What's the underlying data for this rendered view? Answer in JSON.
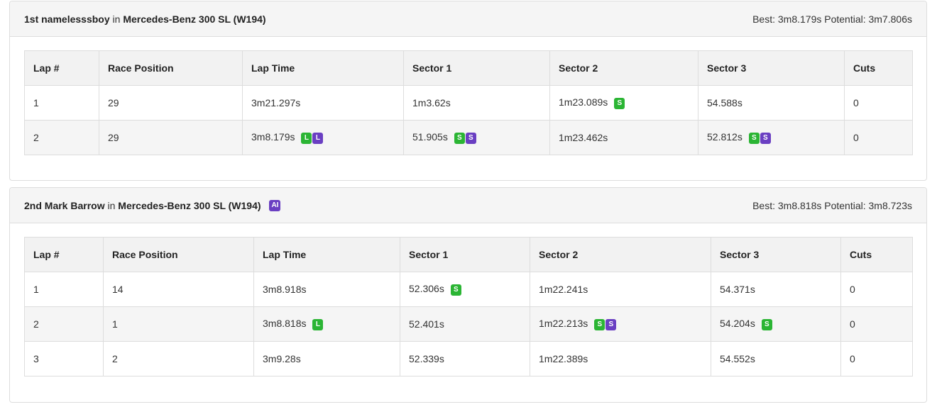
{
  "colors": {
    "best_green": "#2bb534",
    "best_purple": "#6a3fc2",
    "header_bg": "#f5f5f5"
  },
  "results": [
    {
      "position": "1st",
      "driver": "namelesssboy",
      "in_text": "in",
      "car": "Mercedes-Benz 300 SL (W194)",
      "ai_badge": "",
      "best_label": "Best:",
      "best": "3m8.179s",
      "potential_label": "Potential:",
      "potential": "3m7.806s",
      "columns": [
        "Lap #",
        "Race Position",
        "Lap Time",
        "Sector 1",
        "Sector 2",
        "Sector 3",
        "Cuts"
      ],
      "laps": [
        {
          "lap": "1",
          "race_position": "29",
          "lap_time": {
            "value": "3m21.297s",
            "badges": []
          },
          "sector1": {
            "value": "1m3.62s",
            "badges": []
          },
          "sector2": {
            "value": "1m23.089s",
            "badges": [
              {
                "text": "S",
                "color": "green"
              }
            ]
          },
          "sector3": {
            "value": "54.588s",
            "badges": []
          },
          "cuts": "0"
        },
        {
          "lap": "2",
          "race_position": "29",
          "lap_time": {
            "value": "3m8.179s",
            "badges": [
              {
                "text": "L",
                "color": "green"
              },
              {
                "text": "L",
                "color": "purple"
              }
            ]
          },
          "sector1": {
            "value": "51.905s",
            "badges": [
              {
                "text": "S",
                "color": "green"
              },
              {
                "text": "S",
                "color": "purple"
              }
            ]
          },
          "sector2": {
            "value": "1m23.462s",
            "badges": []
          },
          "sector3": {
            "value": "52.812s",
            "badges": [
              {
                "text": "S",
                "color": "green"
              },
              {
                "text": "S",
                "color": "purple"
              }
            ]
          },
          "cuts": "0"
        }
      ]
    },
    {
      "position": "2nd",
      "driver": "Mark Barrow",
      "in_text": "in",
      "car": "Mercedes-Benz 300 SL (W194)",
      "ai_badge": "AI",
      "best_label": "Best:",
      "best": "3m8.818s",
      "potential_label": "Potential:",
      "potential": "3m8.723s",
      "columns": [
        "Lap #",
        "Race Position",
        "Lap Time",
        "Sector 1",
        "Sector 2",
        "Sector 3",
        "Cuts"
      ],
      "laps": [
        {
          "lap": "1",
          "race_position": "14",
          "lap_time": {
            "value": "3m8.918s",
            "badges": []
          },
          "sector1": {
            "value": "52.306s",
            "badges": [
              {
                "text": "S",
                "color": "green"
              }
            ]
          },
          "sector2": {
            "value": "1m22.241s",
            "badges": []
          },
          "sector3": {
            "value": "54.371s",
            "badges": []
          },
          "cuts": "0"
        },
        {
          "lap": "2",
          "race_position": "1",
          "lap_time": {
            "value": "3m8.818s",
            "badges": [
              {
                "text": "L",
                "color": "green"
              }
            ]
          },
          "sector1": {
            "value": "52.401s",
            "badges": []
          },
          "sector2": {
            "value": "1m22.213s",
            "badges": [
              {
                "text": "S",
                "color": "green"
              },
              {
                "text": "S",
                "color": "purple"
              }
            ]
          },
          "sector3": {
            "value": "54.204s",
            "badges": [
              {
                "text": "S",
                "color": "green"
              }
            ]
          },
          "cuts": "0"
        },
        {
          "lap": "3",
          "race_position": "2",
          "lap_time": {
            "value": "3m9.28s",
            "badges": []
          },
          "sector1": {
            "value": "52.339s",
            "badges": []
          },
          "sector2": {
            "value": "1m22.389s",
            "badges": []
          },
          "sector3": {
            "value": "54.552s",
            "badges": []
          },
          "cuts": "0"
        }
      ]
    }
  ]
}
